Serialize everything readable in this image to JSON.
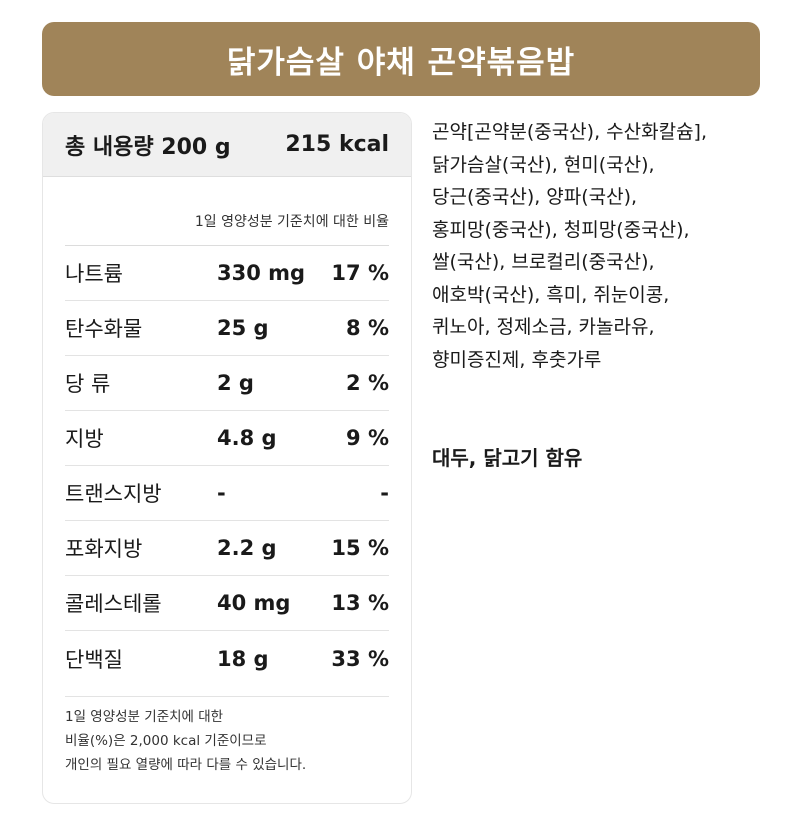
{
  "banner": {
    "title": "닭가슴살 야채 곤약볶음밥"
  },
  "nutrition": {
    "total_label": "총 내용량 200 g",
    "calories": "215 kcal",
    "daily_value_caption": "1일 영양성분 기준치에 대한 비율",
    "rows": [
      {
        "name": "나트륨",
        "amount": "330 mg",
        "percent": "17 %"
      },
      {
        "name": "탄수화물",
        "amount": "25 g",
        "percent": "8 %"
      },
      {
        "name": "당 류",
        "amount": "2 g",
        "percent": "2 %"
      },
      {
        "name": "지방",
        "amount": "4.8 g",
        "percent": "9 %"
      },
      {
        "name": "트랜스지방",
        "amount": "-",
        "percent": "-"
      },
      {
        "name": "포화지방",
        "amount": "2.2 g",
        "percent": "15 %"
      },
      {
        "name": "콜레스테롤",
        "amount": "40 mg",
        "percent": "13 %"
      },
      {
        "name": "단백질",
        "amount": "18 g",
        "percent": "33 %"
      }
    ],
    "footnote_lines": [
      "1일 영양성분 기준치에 대한",
      "비율(%)은 2,000 kcal 기준이므로",
      "개인의 필요 열량에 따라 다를 수 있습니다."
    ]
  },
  "ingredients": {
    "lines": [
      "곤약[곤약분(중국산), 수산화칼슘],",
      "닭가슴살(국산), 현미(국산),",
      "당근(중국산), 양파(국산),",
      "홍피망(중국산), 청피망(중국산),",
      "쌀(국산), 브로컬리(중국산),",
      "애호박(국산), 흑미, 쥐눈이콩,",
      "퀴노아, 정제소금, 카놀라유,",
      "향미증진제, 후춧가루"
    ],
    "allergen": "대두, 닭고기 함유"
  }
}
